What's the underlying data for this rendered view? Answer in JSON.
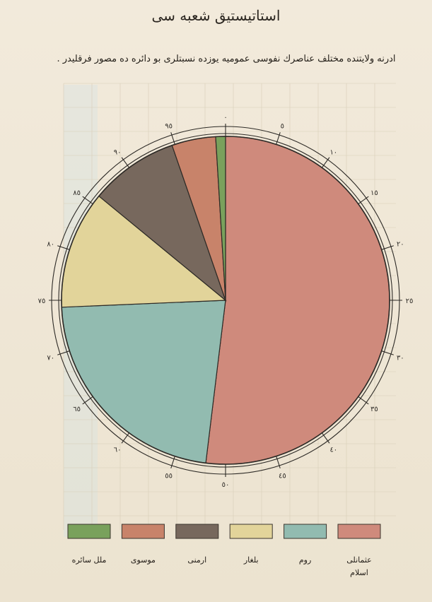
{
  "header": {
    "title": "استاتیستیق شعبه سی",
    "subtitle": "ادرنه ولایتنده مختلف عناصرك نفوسی عمومیه یوزده نسبتلری بو دائره ده مصور فرقلیدر ."
  },
  "chart_data": {
    "type": "pie",
    "start": "top",
    "direction": "clockwise",
    "slices": [
      {
        "key": "ottoman_muslim",
        "value": 54.0,
        "color": "#cf8a7c"
      },
      {
        "key": "greek",
        "value": 23.3,
        "color": "#92bbb0"
      },
      {
        "key": "bulgarian",
        "value": 12.1,
        "color": "#e2d49a"
      },
      {
        "key": "armenian",
        "value": 9.1,
        "color": "#77685d"
      },
      {
        "key": "jewish",
        "value": 4.5,
        "color": "#c8836a"
      },
      {
        "key": "others",
        "value": 1.0,
        "color": "#79a15c"
      }
    ],
    "scale": {
      "min": 0,
      "max": 100,
      "major_step": 5,
      "labels": [
        "٠",
        "٥",
        "١٠",
        "١٥",
        "٢٠",
        "٢٥",
        "٣٠",
        "٣٥",
        "٤٠",
        "٤٥",
        "٥٠",
        "٥٥",
        "٦٠",
        "٦٥",
        "٧٠",
        "٧٥",
        "٨٠",
        "٨٥",
        "٩٠",
        "٩٥"
      ]
    },
    "legend": [
      {
        "key": "others",
        "label": "ملل سائره",
        "label2": "",
        "color": "#79a15c"
      },
      {
        "key": "jewish",
        "label": "موسوی",
        "label2": "",
        "color": "#c8836a"
      },
      {
        "key": "armenian",
        "label": "ارمنی",
        "label2": "",
        "color": "#77685d"
      },
      {
        "key": "bulgarian",
        "label": "بلغار",
        "label2": "",
        "color": "#e2d49a"
      },
      {
        "key": "greek",
        "label": "روم",
        "label2": "",
        "color": "#92bbb0"
      },
      {
        "key": "ottoman_muslim",
        "label": "عثمانلی",
        "label2": "اسلام",
        "color": "#cf8a7c"
      }
    ]
  }
}
